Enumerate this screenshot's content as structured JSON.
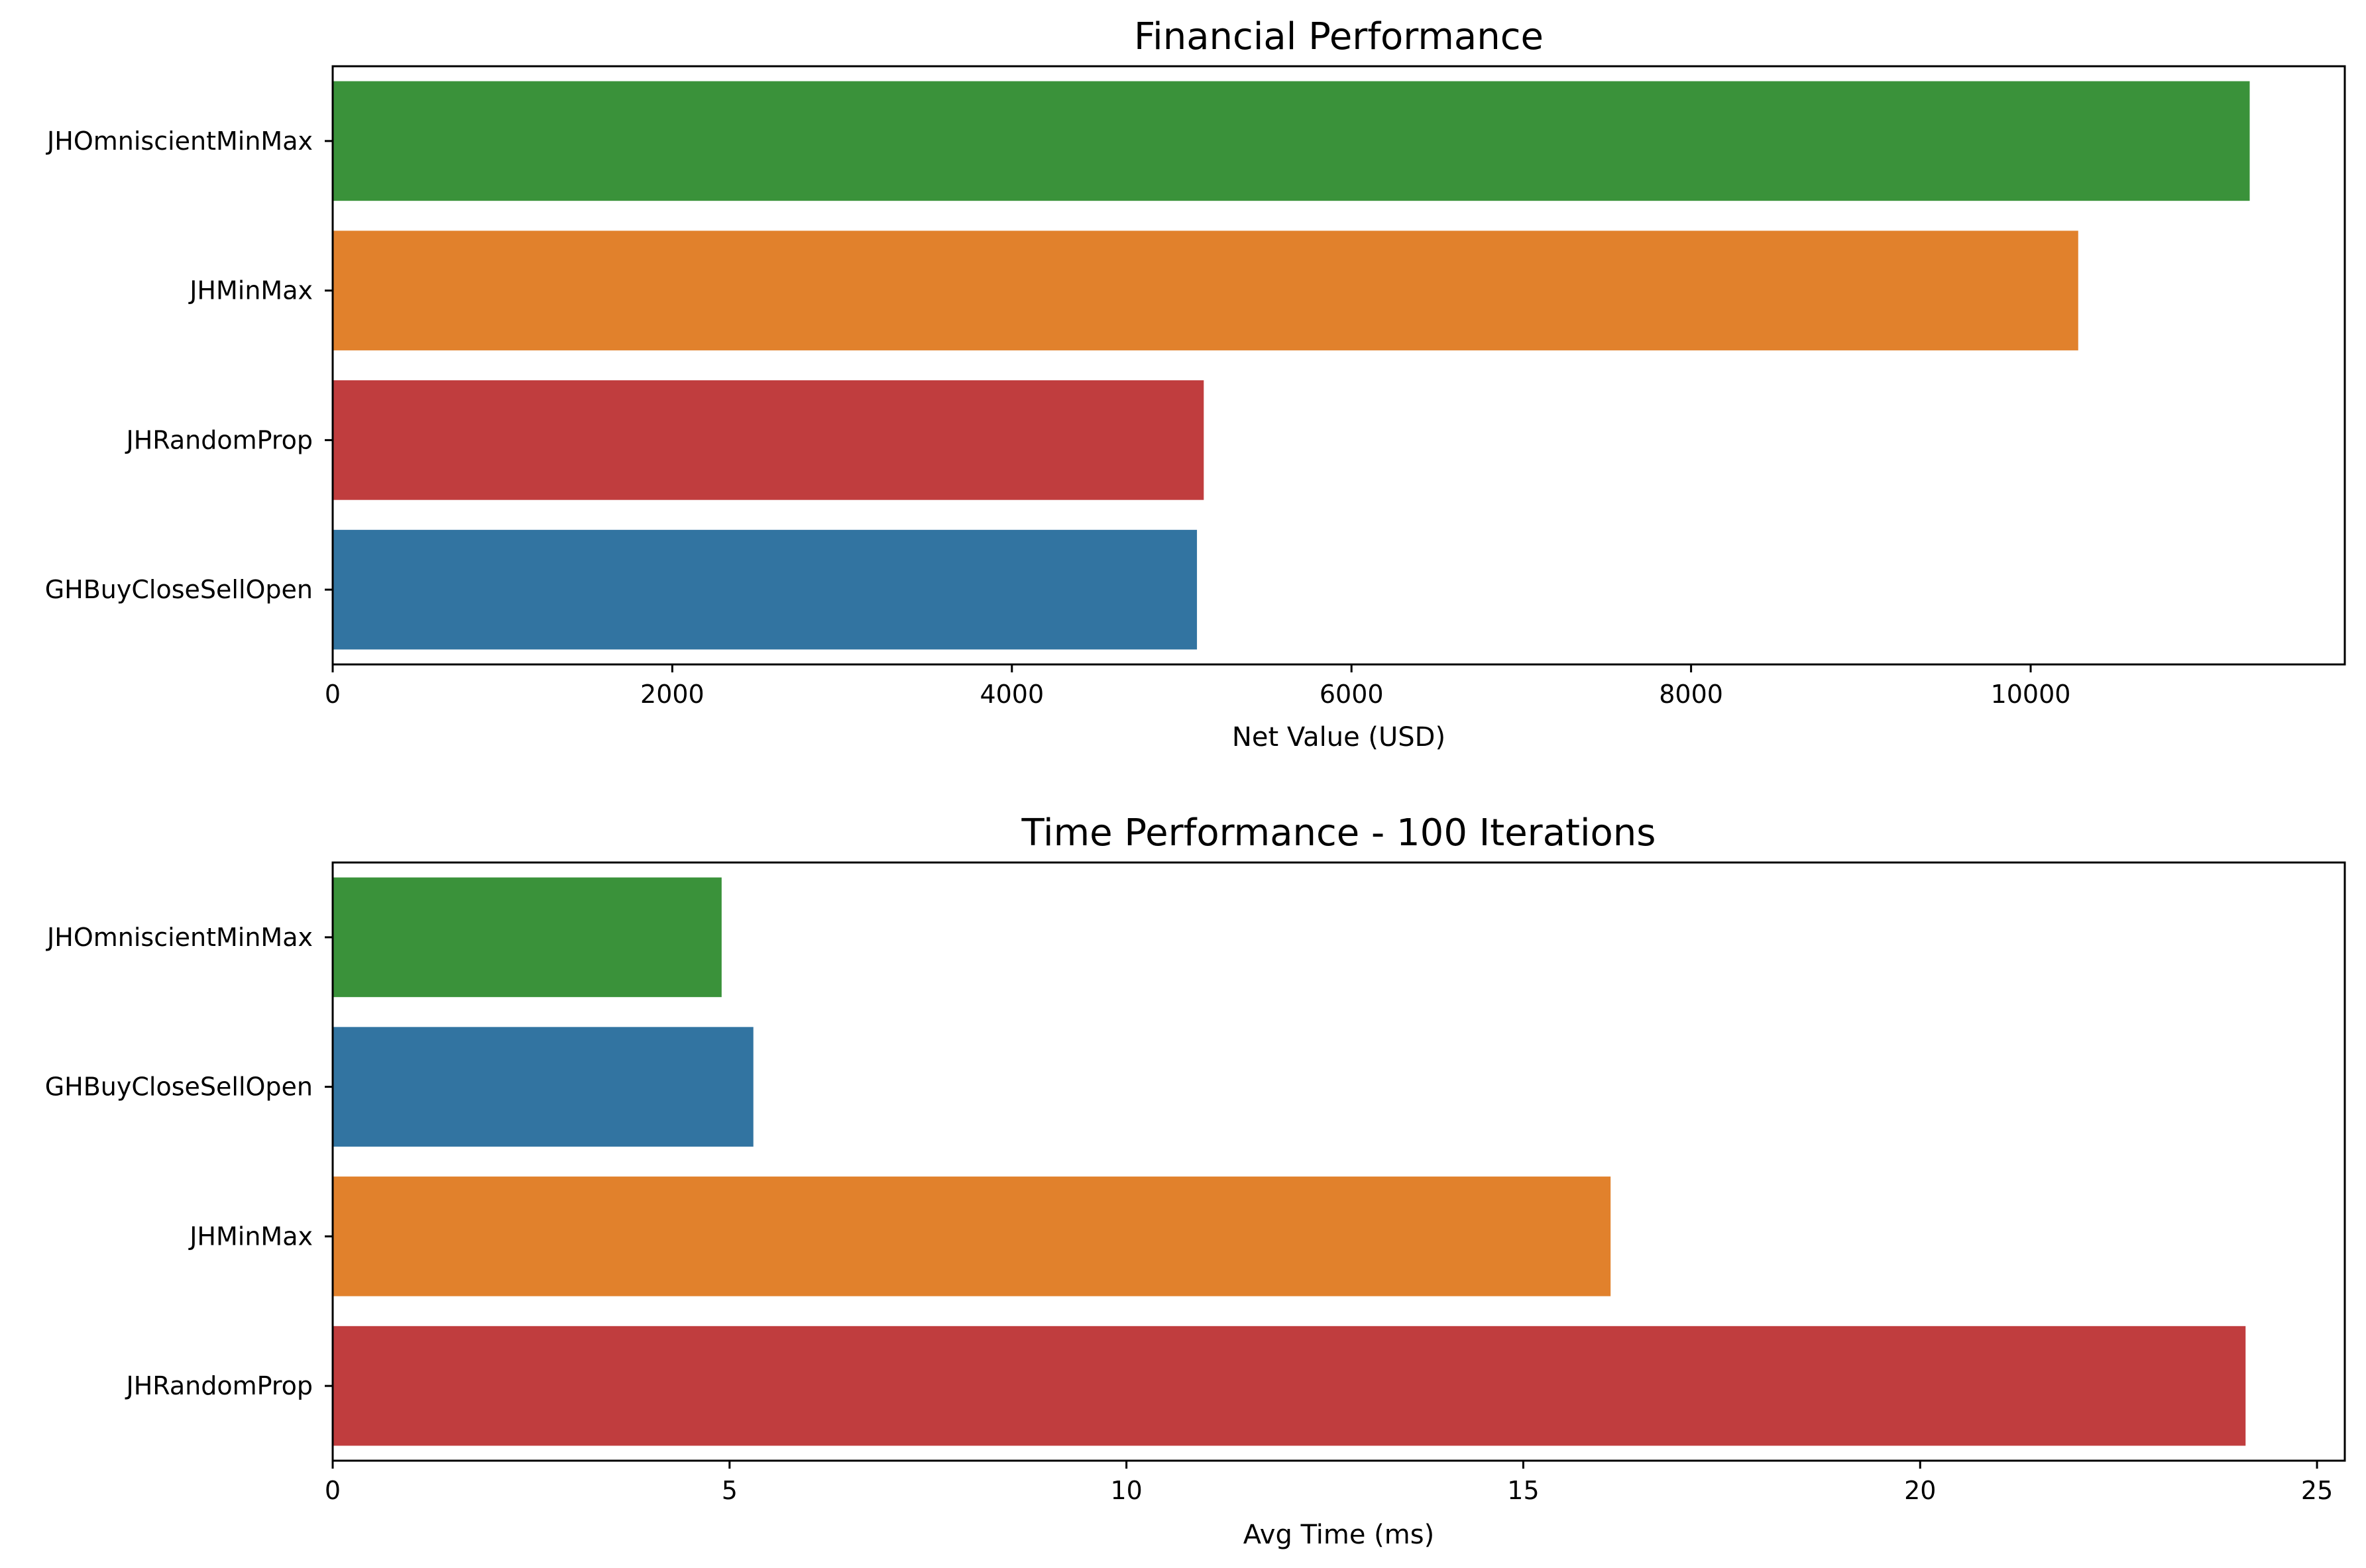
{
  "chart_data": [
    {
      "type": "bar",
      "orientation": "horizontal",
      "title": "Financial Performance",
      "xlabel": "Net Value (USD)",
      "ylabel": "",
      "xlim": [
        0,
        11850
      ],
      "xticks": [
        0,
        2000,
        4000,
        6000,
        8000,
        10000
      ],
      "xtick_labels": [
        "0",
        "2000",
        "4000",
        "6000",
        "8000",
        "10000"
      ],
      "categories": [
        "JHOmniscientMinMax",
        "JHMinMax",
        "JHRandomProp",
        "GHBuyCloseSellOpen"
      ],
      "values": [
        11290,
        10280,
        5130,
        5090
      ],
      "colors": [
        "#3a923a",
        "#e1812c",
        "#c03d3e",
        "#3274a1"
      ],
      "grid": false
    },
    {
      "type": "bar",
      "orientation": "horizontal",
      "title": "Time Performance - 100 Iterations",
      "xlabel": "Avg Time (ms)",
      "ylabel": "",
      "xlim": [
        0,
        25.35
      ],
      "xticks": [
        0,
        5,
        10,
        15,
        20,
        25
      ],
      "xtick_labels": [
        "0",
        "5",
        "10",
        "15",
        "20",
        "25"
      ],
      "categories": [
        "JHOmniscientMinMax",
        "GHBuyCloseSellOpen",
        "JHMinMax",
        "JHRandomProp"
      ],
      "values": [
        4.9,
        5.3,
        16.1,
        24.1
      ],
      "colors": [
        "#3a923a",
        "#3274a1",
        "#e1812c",
        "#c03d3e"
      ],
      "grid": false
    }
  ]
}
